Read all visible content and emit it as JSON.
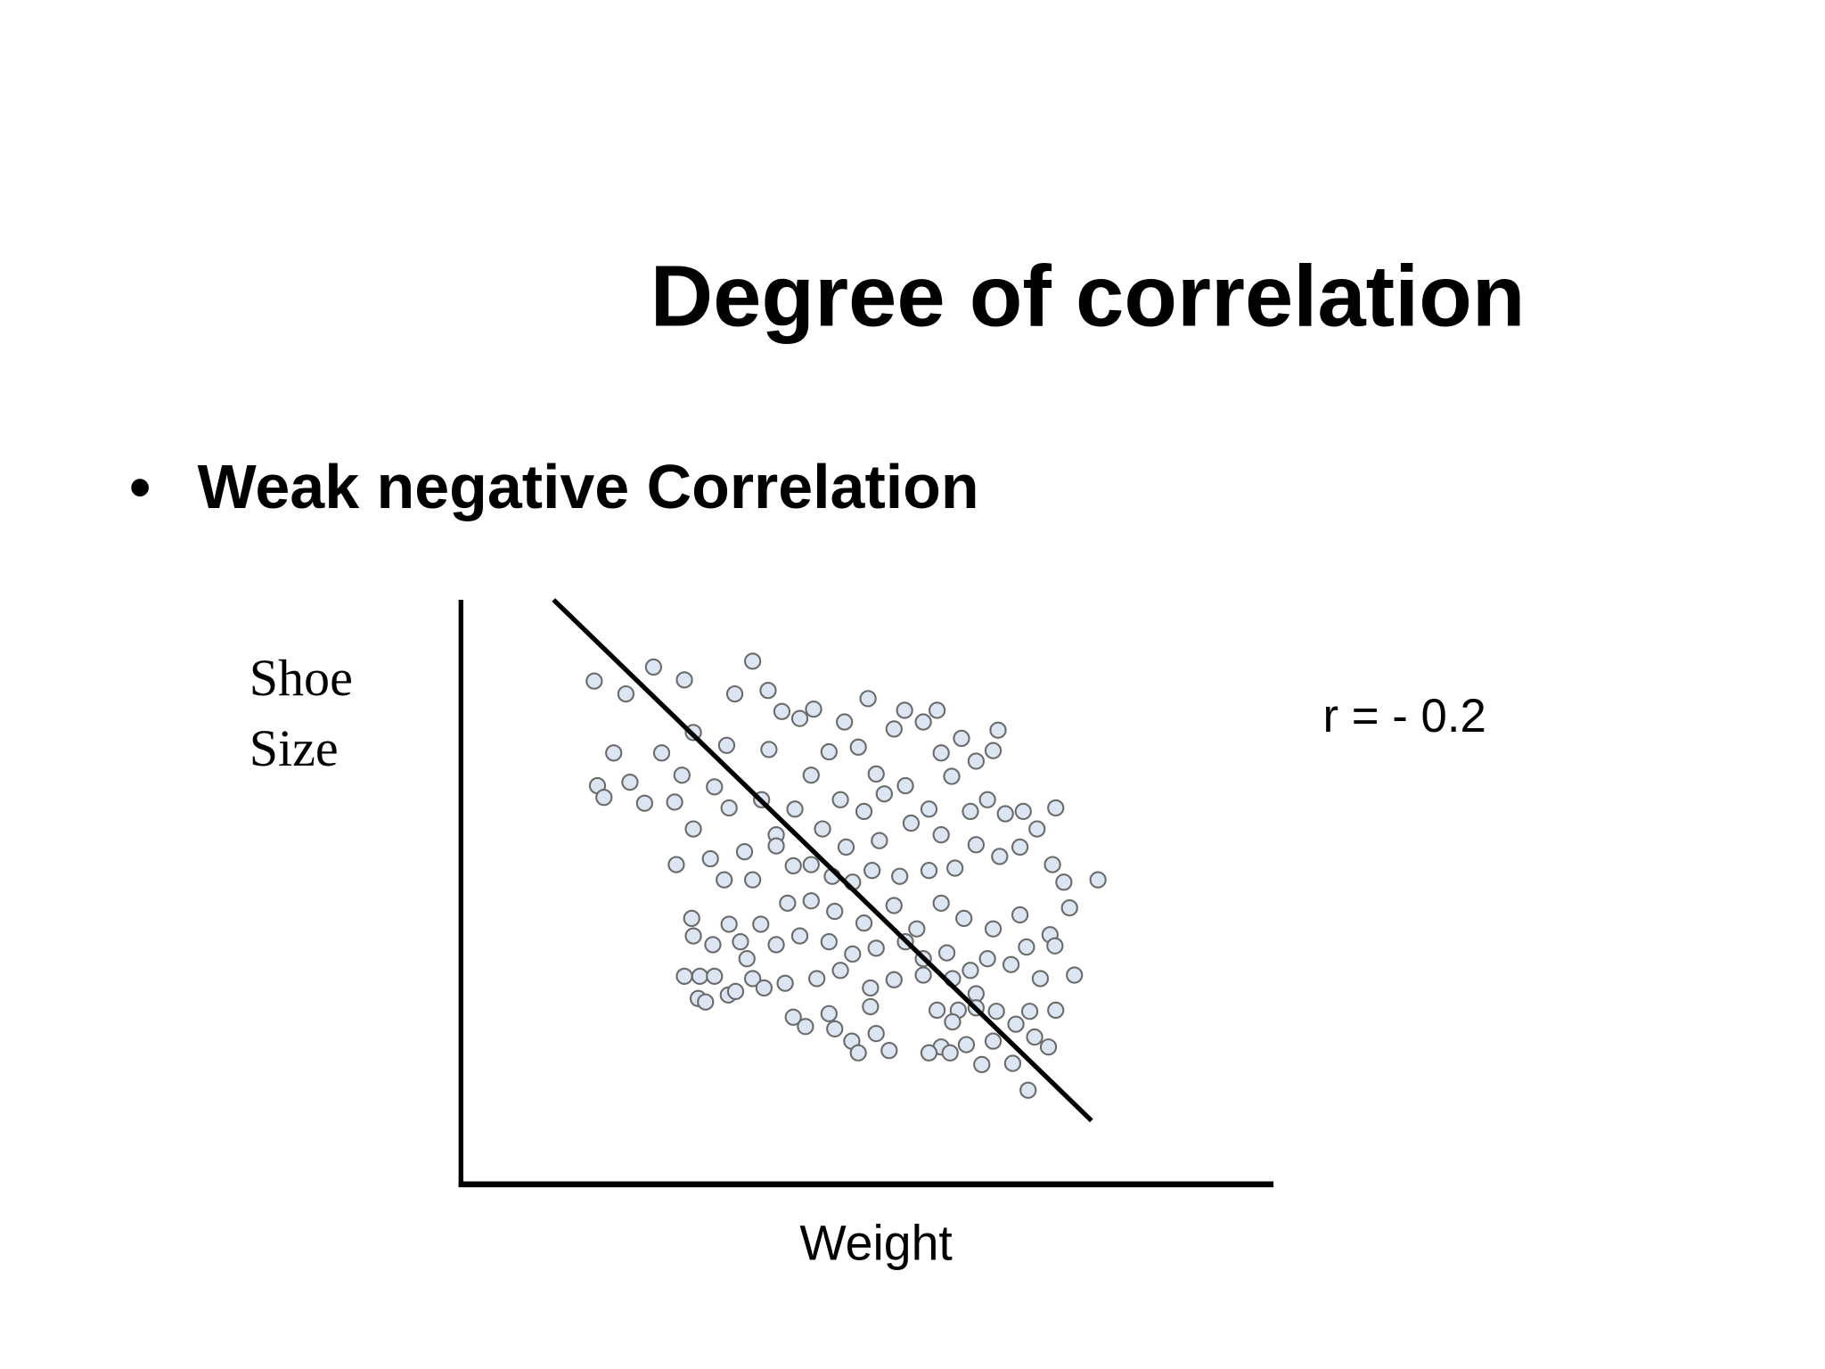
{
  "chart_data": {
    "type": "scatter",
    "title": "Degree of correlation",
    "subtitle": "Weak negative Correlation",
    "y_label": [
      "Shoe",
      "Size"
    ],
    "x_label": "Weight",
    "annotation": "r = - 0.2",
    "xlim": [
      0,
      100
    ],
    "ylim": [
      0,
      100
    ],
    "color": "#dce6f2",
    "trend_line": {
      "x": [
        11.4,
        77.6
      ],
      "y": [
        100,
        10.9
      ]
    },
    "series": [
      {
        "name": "points",
        "x": [
          16.4,
          20.3,
          23.7,
          27.5,
          35.9,
          33.7,
          37.8,
          39.5,
          41.7,
          43.4,
          50.1,
          54.6,
          58.6,
          66.1,
          18.8,
          24.7,
          28.6,
          32.7,
          37.9,
          16.8,
          17.6,
          20.8,
          22.6,
          26.3,
          27.2,
          31.2,
          33.0,
          28.6,
          26.5,
          30.7,
          32.4,
          34.9,
          35.9,
          38.8,
          41.1,
          43.1,
          45.3,
          47.2,
          48.9,
          51.1,
          53.3,
          56.9,
          59.1,
          61.6,
          63.4,
          65.5,
          60.4,
          57.6,
          54.7,
          52.1,
          49.6,
          46.7,
          44.5,
          47.4,
          51.5,
          55.4,
          59.1,
          62.7,
          64.8,
          67.0,
          69.2,
          70.9,
          73.2,
          72.8,
          74.2,
          78.4,
          74.9,
          68.8,
          66.3,
          63.4,
          60.8,
          57.6,
          54.0,
          50.6,
          48.2,
          45.7,
          43.1,
          40.9,
          38.8,
          37.0,
          40.2,
          43.1,
          46.0,
          49.6,
          53.3,
          56.1,
          59.1,
          61.9,
          65.5,
          68.8,
          72.5,
          69.6,
          73.1,
          28.4,
          28.6,
          31.0,
          33.0,
          34.4,
          36.9,
          38.8,
          41.7,
          45.3,
          48.2,
          51.1,
          54.7,
          56.9,
          59.8,
          62.7,
          64.8,
          67.7,
          71.3,
          75.5,
          27.5,
          29.4,
          31.2,
          35.2,
          35.9,
          37.3,
          39.9,
          43.8,
          46.7,
          50.4,
          53.3,
          56.9,
          60.5,
          63.4,
          65.9,
          70.0,
          73.2,
          29.2,
          30.1,
          32.9,
          33.8,
          40.9,
          42.4,
          45.3,
          46.0,
          48.1,
          50.4,
          51.1,
          52.7,
          48.9,
          58.6,
          61.2,
          63.4,
          59.1,
          60.2,
          62.2,
          64.1,
          65.5,
          68.3,
          70.6,
          72.3,
          67.9,
          69.8,
          60.5,
          57.6
        ],
        "values": [
          86.1,
          83.9,
          88.5,
          86.3,
          89.5,
          83.9,
          84.5,
          80.9,
          79.7,
          81.3,
          83.1,
          81.1,
          81.1,
          77.7,
          73.8,
          73.8,
          77.3,
          75.1,
          74.4,
          68.2,
          66.2,
          68.8,
          65.2,
          65.4,
          70.0,
          68.0,
          64.4,
          60.8,
          54.7,
          55.7,
          52.1,
          56.9,
          52.1,
          59.8,
          64.2,
          70.0,
          74.0,
          79.1,
          74.8,
          70.2,
          77.9,
          79.1,
          73.8,
          76.3,
          72.4,
          74.2,
          69.8,
          64.2,
          68.2,
          66.8,
          63.8,
          65.8,
          60.8,
          57.7,
          58.8,
          61.8,
          59.8,
          63.8,
          65.8,
          63.4,
          63.8,
          60.8,
          64.4,
          54.7,
          51.7,
          52.1,
          47.3,
          57.7,
          56.1,
          58.1,
          54.1,
          53.7,
          52.7,
          53.7,
          51.7,
          52.7,
          54.7,
          54.5,
          57.9,
          65.8,
          48.1,
          48.5,
          46.7,
          44.7,
          47.7,
          43.7,
          48.1,
          45.5,
          43.7,
          46.1,
          42.7,
          40.6,
          40.8,
          45.5,
          42.5,
          41.0,
          44.5,
          41.5,
          44.5,
          41.0,
          42.5,
          41.5,
          39.4,
          40.4,
          41.5,
          38.6,
          39.6,
          36.6,
          38.6,
          37.6,
          35.2,
          35.8,
          35.6,
          35.6,
          35.6,
          38.6,
          35.2,
          33.6,
          34.4,
          35.2,
          36.6,
          33.6,
          35.0,
          35.8,
          35.2,
          32.6,
          29.6,
          29.6,
          29.8,
          31.8,
          31.2,
          32.4,
          33.0,
          28.6,
          27.0,
          29.2,
          26.6,
          24.5,
          30.4,
          25.8,
          22.9,
          22.5,
          29.8,
          29.8,
          30.2,
          23.5,
          22.5,
          23.9,
          20.5,
          24.5,
          27.4,
          25.2,
          23.5,
          20.7,
          16.1,
          27.8,
          22.5
        ]
      }
    ]
  }
}
